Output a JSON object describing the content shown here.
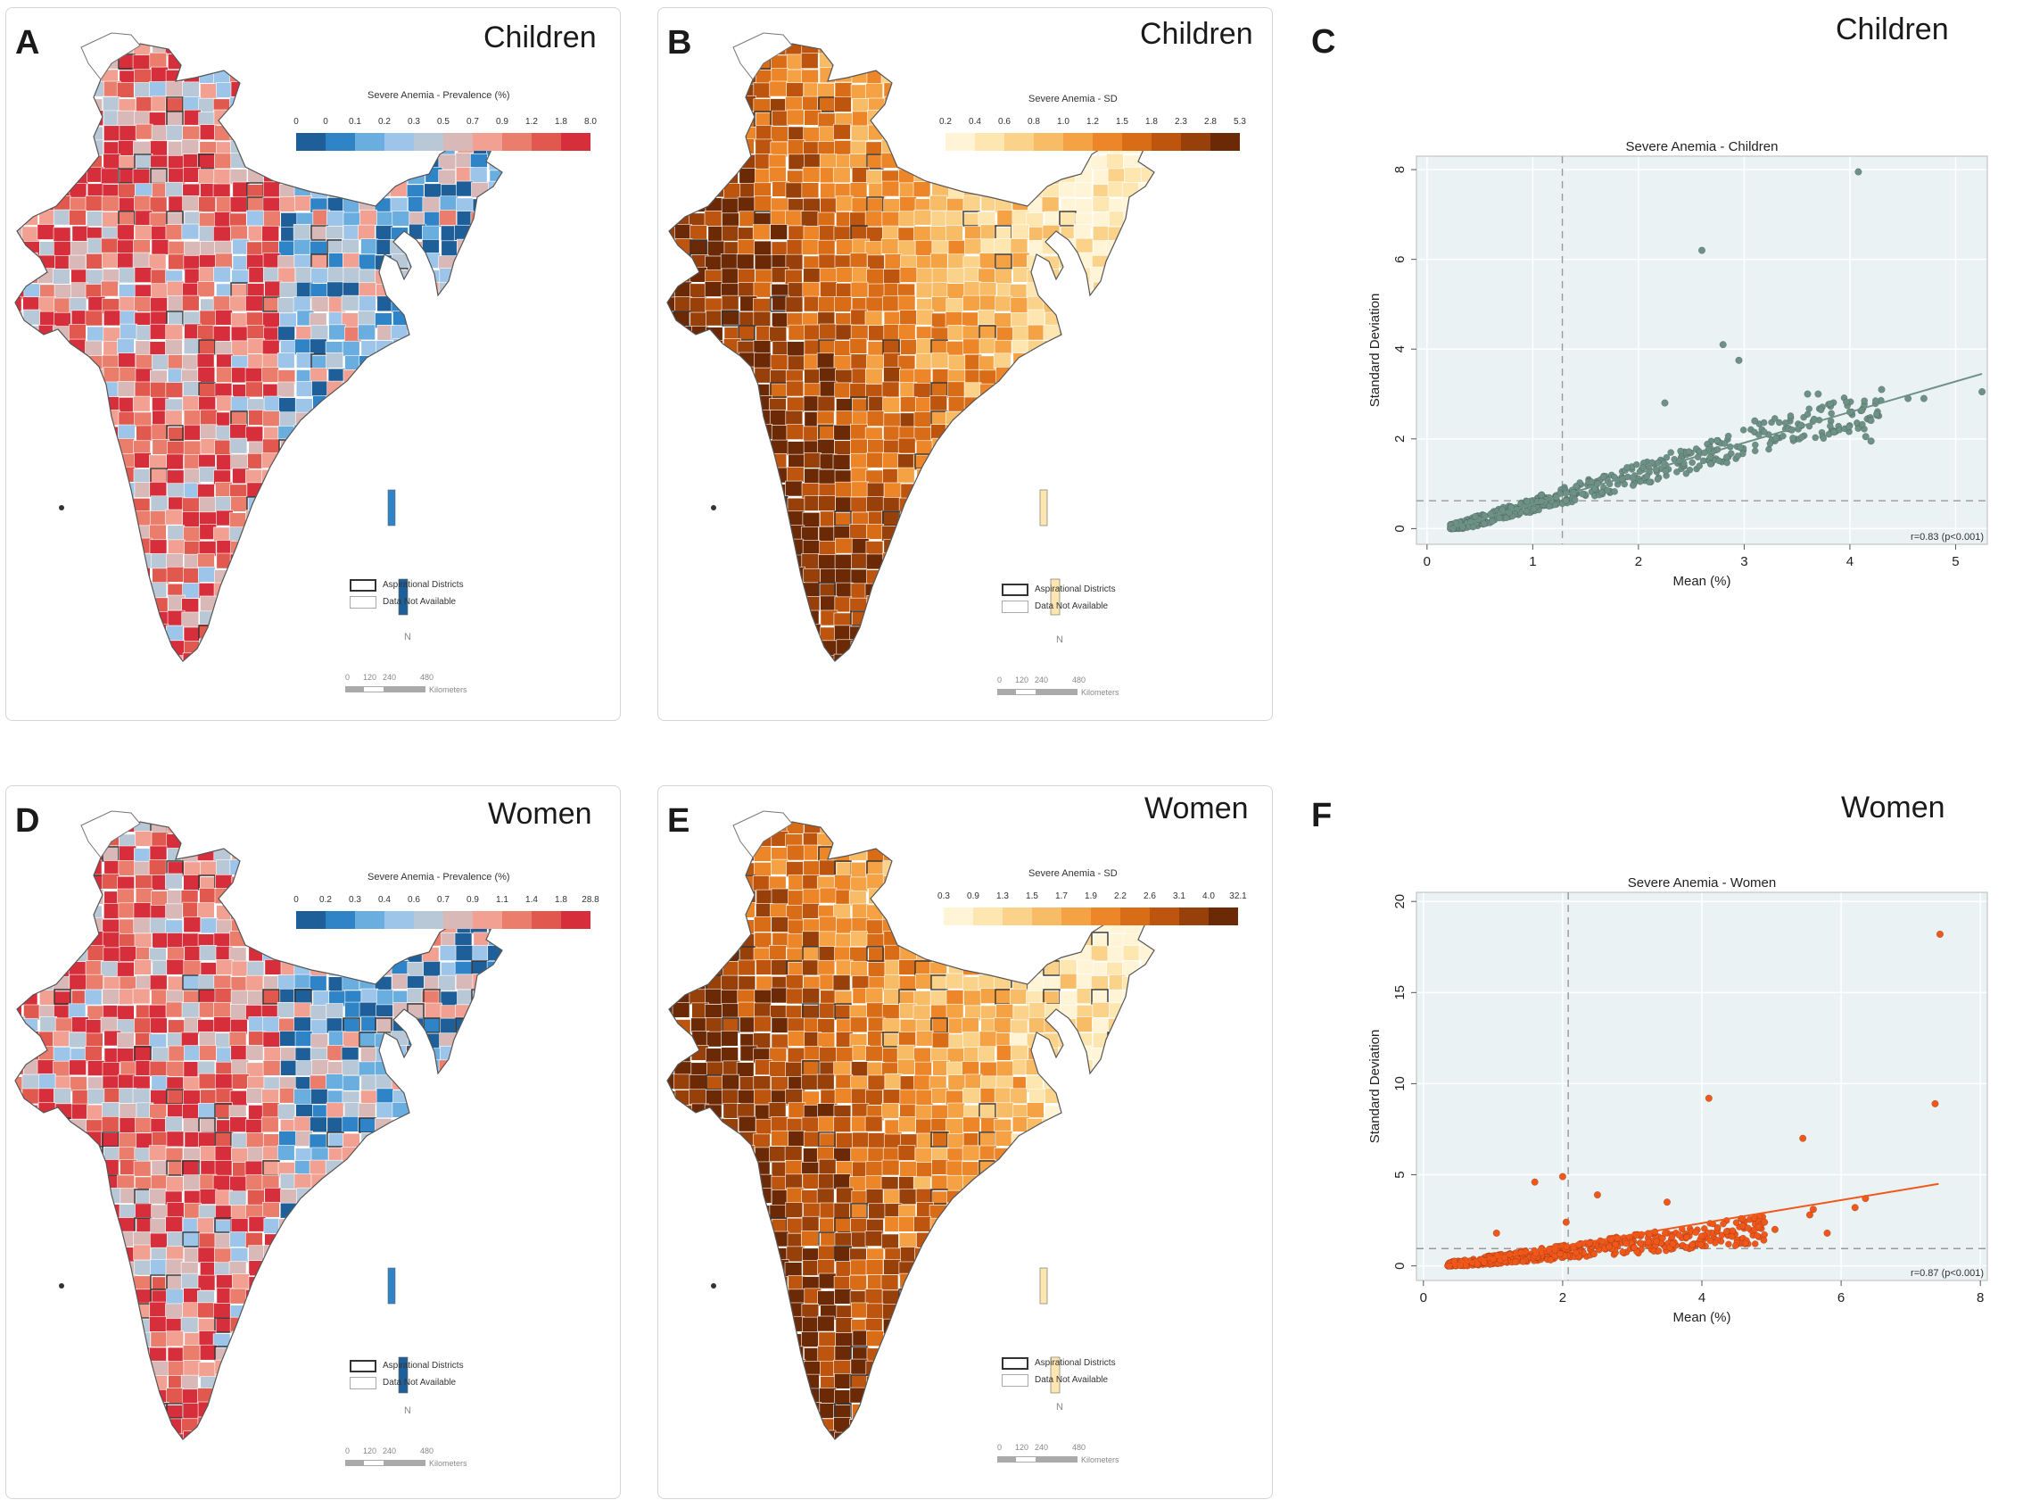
{
  "panels": {
    "A": {
      "letter": "A",
      "group": "Children",
      "legend_title": "Severe Anemia - Prevalence (%)",
      "ticks": [
        "0",
        "0",
        "0.1",
        "0.2",
        "0.3",
        "0.5",
        "0.7",
        "0.9",
        "1.2",
        "1.8",
        "8.0"
      ],
      "colors": [
        "#1f5f99",
        "#2f84c7",
        "#6aaee0",
        "#9dc5ea",
        "#b8c8d6",
        "#d9b8b8",
        "#f2a092",
        "#ea7d6b",
        "#e1584f",
        "#d62e3a"
      ],
      "key_aspirational": "Aspirational Districts",
      "key_na": "Data Not Available",
      "scale": [
        "0",
        "120",
        "240",
        "480"
      ],
      "scale_unit": "Kilometers",
      "north": "N",
      "palette": "diverging"
    },
    "B": {
      "letter": "B",
      "group": "Children",
      "legend_title": "Severe Anemia - SD",
      "ticks": [
        "0.2",
        "0.4",
        "0.6",
        "0.8",
        "1.0",
        "1.2",
        "1.5",
        "1.8",
        "2.3",
        "2.8",
        "5.3"
      ],
      "colors": [
        "#fff4d6",
        "#fde6b0",
        "#fbd28a",
        "#f8bc66",
        "#f4a244",
        "#ec8628",
        "#d96d17",
        "#bd550e",
        "#97400a",
        "#6b2a05"
      ],
      "key_aspirational": "Aspirational Districts",
      "key_na": "Data Not Available",
      "scale": [
        "0",
        "120",
        "240",
        "480"
      ],
      "scale_unit": "Kilometers",
      "north": "N",
      "palette": "sequential"
    },
    "D": {
      "letter": "D",
      "group": "Women",
      "legend_title": "Severe Anemia - Prevalence (%)",
      "ticks": [
        "0",
        "0.2",
        "0.3",
        "0.4",
        "0.6",
        "0.7",
        "0.9",
        "1.1",
        "1.4",
        "1.8",
        "28.8"
      ],
      "colors": [
        "#1f5f99",
        "#2f84c7",
        "#6aaee0",
        "#9dc5ea",
        "#b8c8d6",
        "#d9b8b8",
        "#f2a092",
        "#ea7d6b",
        "#e1584f",
        "#d62e3a"
      ],
      "key_aspirational": "Aspirational Districts",
      "key_na": "Data Not Available",
      "scale": [
        "0",
        "120",
        "240",
        "480"
      ],
      "scale_unit": "Kilometers",
      "north": "N",
      "palette": "diverging"
    },
    "E": {
      "letter": "E",
      "group": "Women",
      "legend_title": "Severe Anemia - SD",
      "ticks": [
        "0.3",
        "0.9",
        "1.3",
        "1.5",
        "1.7",
        "1.9",
        "2.2",
        "2.6",
        "3.1",
        "4.0",
        "32.1"
      ],
      "colors": [
        "#fff4d6",
        "#fde6b0",
        "#fbd28a",
        "#f8bc66",
        "#f4a244",
        "#ec8628",
        "#d96d17",
        "#bd550e",
        "#97400a",
        "#6b2a05"
      ],
      "key_aspirational": "Aspirational Districts",
      "key_na": "Data Not Available",
      "scale": [
        "0",
        "120",
        "240",
        "480"
      ],
      "scale_unit": "Kilometers",
      "north": "N",
      "palette": "sequential"
    },
    "C": {
      "letter": "C",
      "group": "Children"
    },
    "F": {
      "letter": "F",
      "group": "Women"
    }
  },
  "chart_data": [
    {
      "type": "scatter",
      "panel": "C",
      "title": "Severe Anemia - Children",
      "xlabel": "Mean (%)",
      "ylabel": "Standard Deviation",
      "xlim": [
        -0.1,
        5.3
      ],
      "ylim": [
        -0.35,
        8.3
      ],
      "xticks": [
        0,
        1,
        2,
        3,
        4,
        5
      ],
      "yticks": [
        0,
        2,
        4,
        6,
        8
      ],
      "vline": 1.28,
      "hline": 0.62,
      "fit": {
        "x0": 0.2,
        "y0": 0.0,
        "x1": 5.25,
        "y1": 3.45
      },
      "annotation": "r=0.83 (p<0.001)",
      "color": "#6e9186",
      "outliers": [
        [
          4.08,
          7.95
        ],
        [
          2.6,
          6.2
        ],
        [
          2.8,
          4.1
        ],
        [
          2.95,
          3.75
        ],
        [
          3.6,
          3.0
        ],
        [
          3.7,
          3.0
        ],
        [
          4.0,
          2.6
        ],
        [
          4.3,
          3.1
        ],
        [
          4.55,
          2.9
        ],
        [
          4.7,
          2.9
        ],
        [
          5.25,
          3.05
        ],
        [
          3.1,
          2.4
        ],
        [
          2.25,
          2.8
        ],
        [
          3.45,
          2.2
        ],
        [
          3.85,
          2.15
        ],
        [
          4.15,
          2.05
        ],
        [
          4.2,
          1.95
        ]
      ],
      "cloud": {
        "n": 520,
        "seed": 7,
        "xmin": 0.22,
        "xmax": 4.3,
        "slope": 0.68,
        "intercept": -0.15,
        "noise": 0.18
      }
    },
    {
      "type": "scatter",
      "panel": "F",
      "title": "Severe Anemia - Women",
      "xlabel": "Mean (%)",
      "ylabel": "Standard Deviation",
      "xlim": [
        -0.1,
        8.1
      ],
      "ylim": [
        -0.8,
        20.5
      ],
      "xticks": [
        0,
        2,
        4,
        6,
        8
      ],
      "yticks": [
        0,
        5,
        10,
        15,
        20
      ],
      "vline": 2.08,
      "hline": 0.95,
      "fit": {
        "x0": 0.3,
        "y0": 0.0,
        "x1": 7.4,
        "y1": 4.5
      },
      "annotation": "r=0.87 (p<0.001)",
      "color": "#f0571a",
      "outliers": [
        [
          7.42,
          18.2
        ],
        [
          7.35,
          8.9
        ],
        [
          4.1,
          9.2
        ],
        [
          5.45,
          7.0
        ],
        [
          1.6,
          4.6
        ],
        [
          2.0,
          4.9
        ],
        [
          2.5,
          3.9
        ],
        [
          3.5,
          3.5
        ],
        [
          5.8,
          1.8
        ],
        [
          6.2,
          3.2
        ],
        [
          6.35,
          3.7
        ],
        [
          5.6,
          3.1
        ],
        [
          2.05,
          2.4
        ],
        [
          1.05,
          1.8
        ],
        [
          4.9,
          2.4
        ],
        [
          5.05,
          2.0
        ],
        [
          5.55,
          2.8
        ]
      ],
      "cloud": {
        "n": 560,
        "seed": 11,
        "xmin": 0.35,
        "xmax": 4.9,
        "slope": 0.43,
        "intercept": -0.1,
        "noise": 0.28
      }
    }
  ]
}
